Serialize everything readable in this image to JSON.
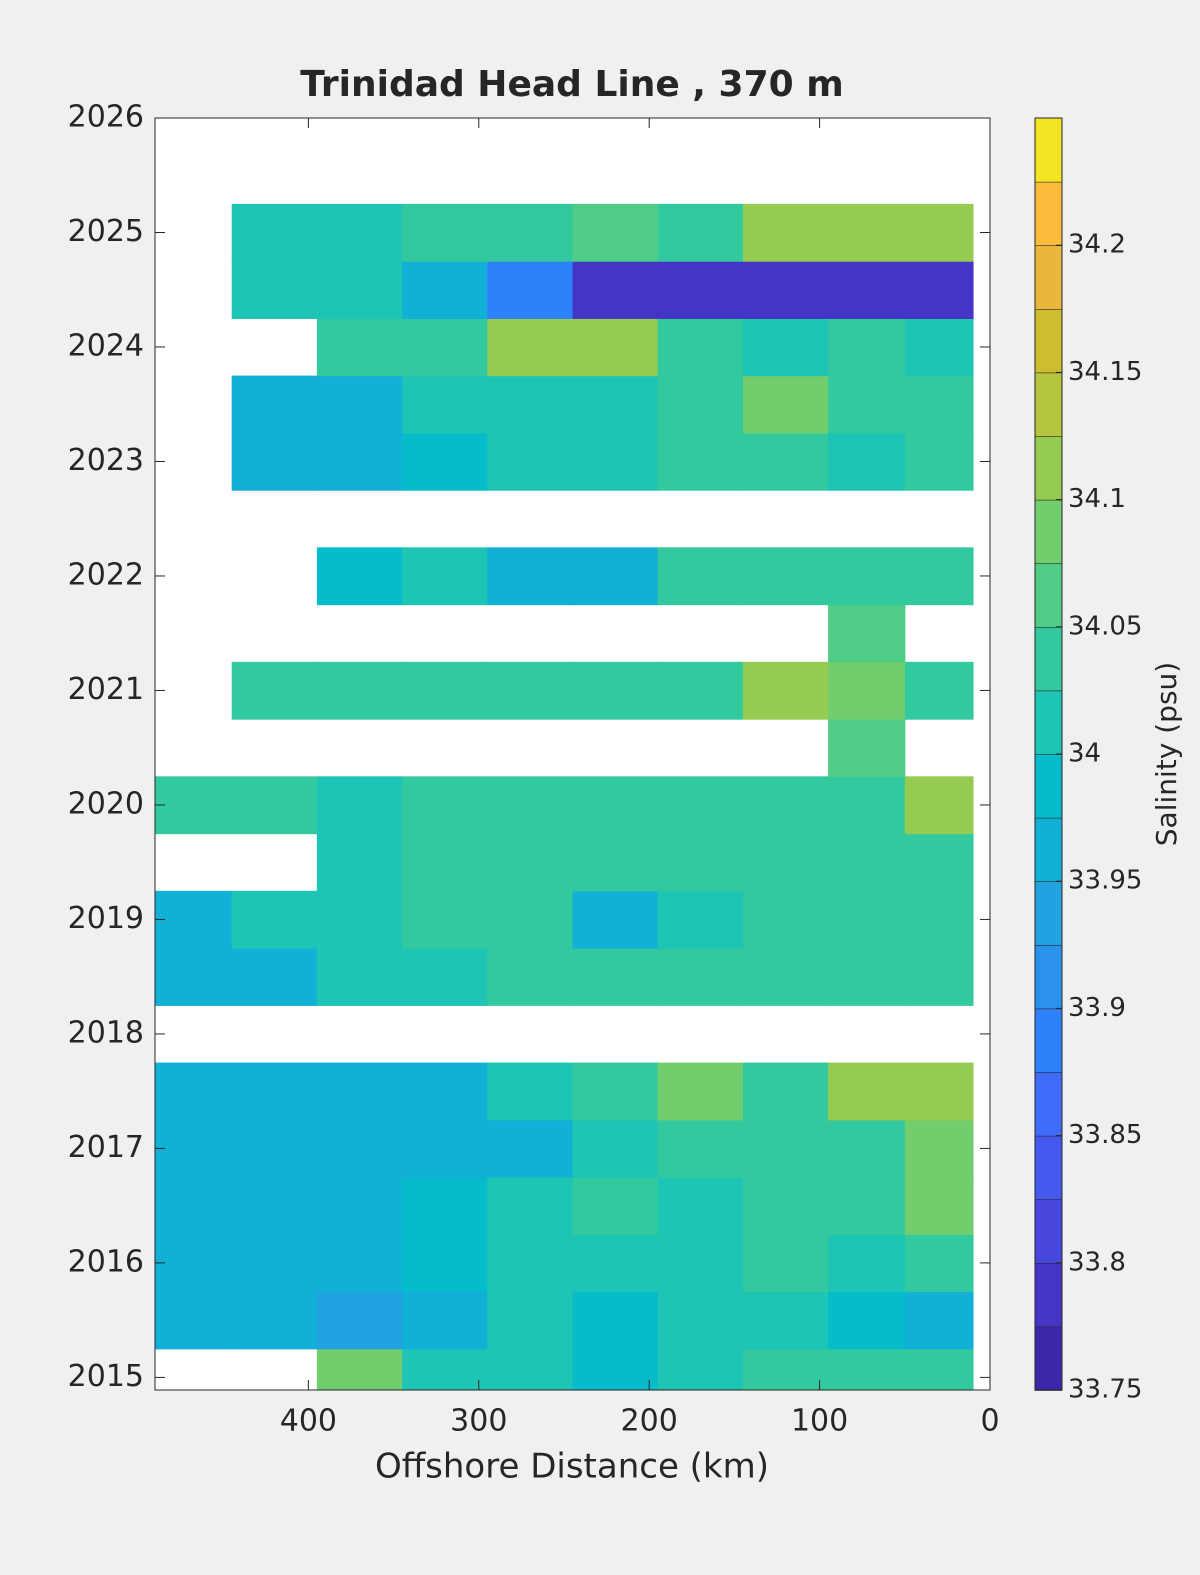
{
  "chart_data": {
    "type": "contourf",
    "title": "Trinidad Head Line , 370 m",
    "x_label": "Offshore Distance (km)",
    "colorbar_label": "Salinity (psu)",
    "x": [
      470,
      420,
      370,
      320,
      270,
      220,
      170,
      120,
      70,
      30
    ],
    "y": [
      2015,
      2015.5,
      2016,
      2016.5,
      2017,
      2017.5,
      2018,
      2018.5,
      2019,
      2019.5,
      2020,
      2020.5,
      2021,
      2021.5,
      2022,
      2022.5,
      2023,
      2023.5,
      2024,
      2024.5,
      2025
    ],
    "z": [
      [
        null,
        null,
        34.08,
        34.0,
        34.0,
        33.98,
        34.0,
        34.03,
        34.05,
        34.05
      ],
      [
        33.95,
        33.95,
        33.93,
        33.97,
        34.0,
        33.98,
        34.0,
        34.0,
        33.98,
        33.97
      ],
      [
        33.95,
        33.95,
        33.97,
        33.98,
        34.0,
        34.02,
        34.0,
        34.03,
        34.0,
        34.05
      ],
      [
        33.95,
        33.95,
        33.97,
        33.98,
        34.0,
        34.03,
        34.02,
        34.05,
        34.05,
        34.08
      ],
      [
        33.95,
        33.95,
        33.95,
        33.97,
        33.97,
        34.0,
        34.03,
        34.05,
        34.05,
        34.08
      ],
      [
        33.95,
        33.95,
        33.95,
        33.97,
        34.0,
        34.03,
        34.08,
        34.05,
        34.12,
        34.12
      ],
      [
        null,
        null,
        null,
        null,
        null,
        null,
        null,
        null,
        null,
        null
      ],
      [
        33.95,
        33.97,
        34.0,
        34.02,
        34.03,
        34.03,
        34.03,
        34.05,
        34.05,
        34.05
      ],
      [
        33.97,
        34.0,
        34.02,
        34.03,
        34.03,
        33.97,
        34.02,
        34.05,
        34.03,
        34.05
      ],
      [
        null,
        null,
        34.0,
        34.05,
        34.03,
        34.03,
        34.05,
        34.03,
        34.05,
        34.05
      ],
      [
        34.03,
        34.03,
        34.0,
        34.03,
        34.05,
        34.05,
        34.05,
        34.05,
        34.05,
        34.1
      ],
      [
        null,
        null,
        null,
        null,
        null,
        null,
        null,
        null,
        34.07,
        null
      ],
      [
        null,
        34.05,
        34.03,
        34.05,
        34.05,
        34.05,
        34.05,
        34.1,
        34.08,
        34.05
      ],
      [
        null,
        null,
        null,
        null,
        null,
        null,
        null,
        null,
        34.07,
        null
      ],
      [
        null,
        null,
        33.98,
        34.0,
        33.97,
        33.95,
        34.03,
        34.05,
        34.05,
        34.05
      ],
      [
        null,
        null,
        null,
        null,
        null,
        null,
        null,
        null,
        null,
        null
      ],
      [
        null,
        33.95,
        33.97,
        33.98,
        34.0,
        34.02,
        34.03,
        34.03,
        34.0,
        34.05
      ],
      [
        null,
        33.95,
        33.97,
        34.0,
        34.02,
        34.02,
        34.03,
        34.08,
        34.05,
        34.05
      ],
      [
        null,
        null,
        34.03,
        34.05,
        34.1,
        34.1,
        34.03,
        34.0,
        34.03,
        34.02
      ],
      [
        null,
        34.0,
        34.0,
        33.95,
        33.9,
        33.78,
        33.78,
        33.78,
        33.8,
        33.8
      ],
      [
        null,
        34.0,
        34.02,
        34.03,
        34.05,
        34.07,
        34.05,
        34.1,
        34.12,
        34.1
      ]
    ],
    "xlim": [
      490,
      0
    ],
    "ylim": [
      2014.89,
      2026
    ],
    "xticks": [
      400,
      300,
      200,
      100,
      0
    ],
    "yticks": [
      2015,
      2016,
      2017,
      2018,
      2019,
      2020,
      2021,
      2022,
      2023,
      2024,
      2025,
      2026
    ],
    "clim": [
      33.75,
      34.25
    ],
    "cticks": [
      33.75,
      33.8,
      33.85,
      33.9,
      33.95,
      34,
      34.05,
      34.1,
      34.15,
      34.2
    ],
    "colormap": [
      "#3e26a8",
      "#4435c6",
      "#4746dd",
      "#4559ee",
      "#3f6cf9",
      "#2f80fb",
      "#2a92ec",
      "#22a2e0",
      "#12b0d7",
      "#06bccb",
      "#1ec4b4",
      "#33c99f",
      "#4fcd86",
      "#72ce6c",
      "#96cb52",
      "#b6c53f",
      "#d0bd2f",
      "#e9b73b",
      "#fcbc3b",
      "#f3e424"
    ]
  }
}
